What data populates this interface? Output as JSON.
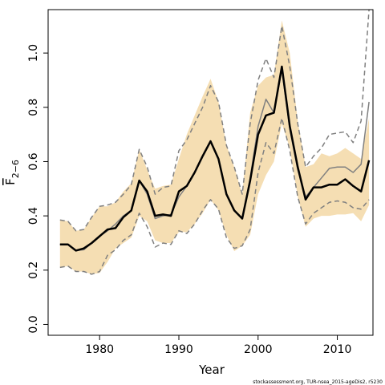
{
  "chart_data": {
    "type": "line",
    "xlabel": "Year",
    "ylabel": "F",
    "ylabel_subscript": "2−6",
    "xlim": [
      1973.5,
      2014.5
    ],
    "ylim": [
      -0.04,
      1.16
    ],
    "x_ticks": [
      1980,
      1990,
      2000,
      2010
    ],
    "x_tick_labels": [
      "1980",
      "1990",
      "2000",
      "2010"
    ],
    "y_ticks": [
      0.0,
      0.2,
      0.4,
      0.6,
      0.8,
      1.0
    ],
    "y_tick_labels": [
      "0.0",
      "0.2",
      "0.4",
      "0.6",
      "0.8",
      "1.0"
    ],
    "grid": false,
    "years": [
      1975,
      1976,
      1977,
      1978,
      1979,
      1980,
      1981,
      1982,
      1983,
      1984,
      1985,
      1986,
      1987,
      1988,
      1989,
      1990,
      1991,
      1992,
      1993,
      1994,
      1995,
      1996,
      1997,
      1998,
      1999,
      2000,
      2001,
      2002,
      2003,
      2004,
      2005,
      2006,
      2007,
      2008,
      2009,
      2010,
      2011,
      2012,
      2013,
      2014
    ],
    "series": [
      {
        "role": "band",
        "color": "#f5deb3",
        "upper": [
          0.385,
          0.38,
          0.345,
          0.35,
          0.395,
          0.435,
          0.435,
          0.45,
          0.49,
          0.52,
          0.645,
          0.57,
          0.5,
          0.51,
          0.515,
          0.61,
          0.7,
          0.77,
          0.84,
          0.905,
          0.82,
          0.66,
          0.58,
          0.48,
          0.78,
          0.88,
          0.91,
          0.92,
          1.12,
          1.0,
          0.75,
          0.58,
          0.59,
          0.63,
          0.62,
          0.63,
          0.65,
          0.63,
          0.61,
          0.76
        ],
        "lower": [
          0.21,
          0.215,
          0.195,
          0.195,
          0.185,
          0.19,
          0.23,
          0.28,
          0.3,
          0.32,
          0.4,
          0.38,
          0.31,
          0.3,
          0.3,
          0.34,
          0.34,
          0.37,
          0.41,
          0.46,
          0.42,
          0.33,
          0.27,
          0.29,
          0.33,
          0.48,
          0.55,
          0.6,
          0.74,
          0.65,
          0.47,
          0.36,
          0.39,
          0.4,
          0.4,
          0.405,
          0.405,
          0.41,
          0.38,
          0.44
        ]
      },
      {
        "role": "estimate",
        "color": "#000000",
        "values": [
          0.295,
          0.295,
          0.272,
          0.28,
          0.3,
          0.325,
          0.35,
          0.355,
          0.395,
          0.42,
          0.53,
          0.49,
          0.4,
          0.405,
          0.4,
          0.49,
          0.51,
          0.56,
          0.62,
          0.675,
          0.61,
          0.48,
          0.42,
          0.39,
          0.53,
          0.7,
          0.77,
          0.78,
          0.95,
          0.73,
          0.58,
          0.46,
          0.505,
          0.505,
          0.515,
          0.515,
          0.535,
          0.51,
          0.49,
          0.605
        ]
      },
      {
        "role": "alt-estimate",
        "color": "#808080",
        "values": [
          0.295,
          0.295,
          0.272,
          0.275,
          0.3,
          0.325,
          0.345,
          0.37,
          0.4,
          0.42,
          0.53,
          0.48,
          0.39,
          0.4,
          0.405,
          0.47,
          0.51,
          0.56,
          0.62,
          0.675,
          0.61,
          0.48,
          0.42,
          0.39,
          0.54,
          0.73,
          0.83,
          0.78,
          0.94,
          0.72,
          0.57,
          0.47,
          0.505,
          0.54,
          0.575,
          0.58,
          0.58,
          0.56,
          0.59,
          0.82
        ]
      },
      {
        "role": "alt-upper",
        "color": "#808080",
        "dash": true,
        "values": [
          0.385,
          0.38,
          0.345,
          0.35,
          0.395,
          0.435,
          0.44,
          0.45,
          0.48,
          0.515,
          0.645,
          0.58,
          0.48,
          0.505,
          0.51,
          0.64,
          0.68,
          0.74,
          0.8,
          0.88,
          0.82,
          0.66,
          0.58,
          0.48,
          0.74,
          0.9,
          0.98,
          0.91,
          1.1,
          0.95,
          0.74,
          0.58,
          0.62,
          0.65,
          0.7,
          0.705,
          0.71,
          0.67,
          0.75,
          1.16
        ]
      },
      {
        "role": "alt-lower",
        "color": "#808080",
        "dash": true,
        "values": [
          0.21,
          0.215,
          0.195,
          0.195,
          0.185,
          0.195,
          0.255,
          0.275,
          0.31,
          0.33,
          0.41,
          0.36,
          0.285,
          0.3,
          0.295,
          0.345,
          0.335,
          0.37,
          0.42,
          0.46,
          0.425,
          0.32,
          0.28,
          0.29,
          0.35,
          0.56,
          0.67,
          0.63,
          0.76,
          0.64,
          0.47,
          0.37,
          0.41,
          0.43,
          0.45,
          0.455,
          0.45,
          0.43,
          0.425,
          0.46
        ]
      }
    ]
  },
  "footer": "stockassessment.org, TUR-nsea_2015-ageDis2, r5230"
}
